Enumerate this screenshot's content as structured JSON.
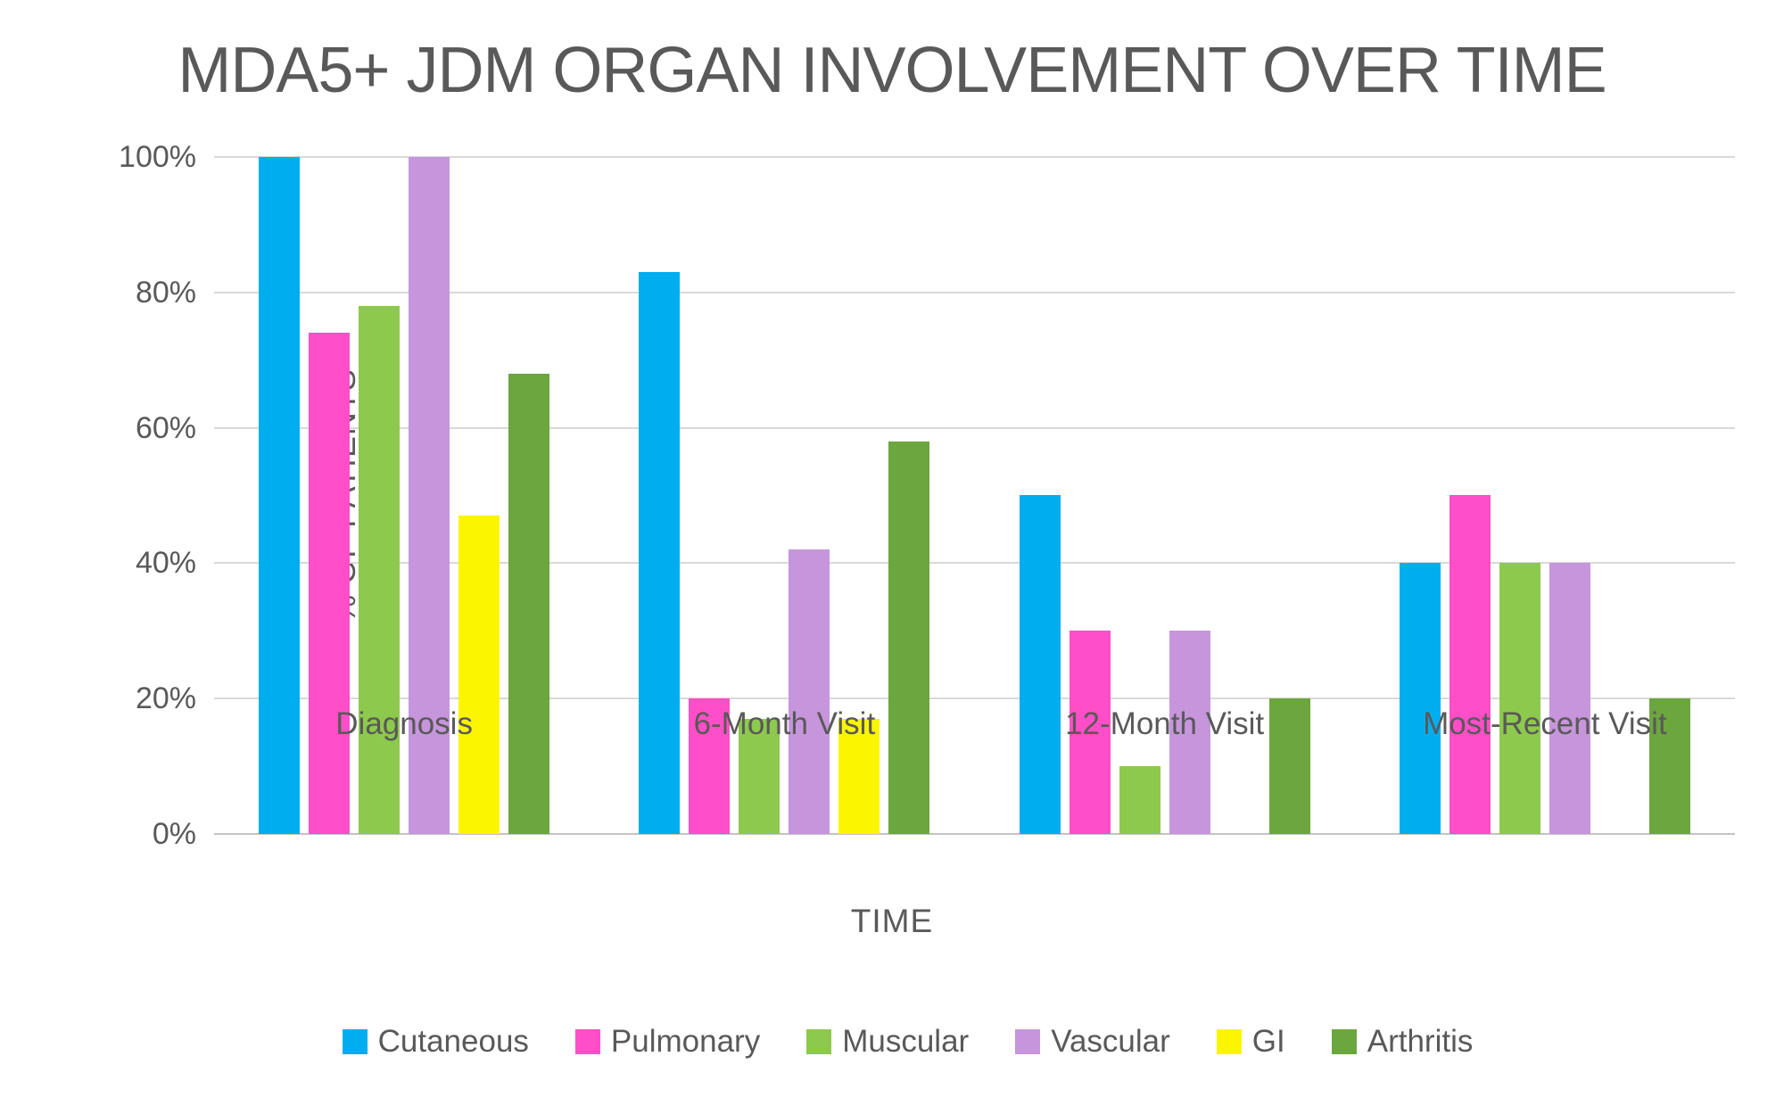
{
  "title": "MDA5+ JDM ORGAN INVOLVEMENT OVER TIME",
  "colors": {
    "title_text": "#595959",
    "axis_text": "#595959",
    "gridline": "#d9d9d9",
    "baseline": "#c3c3c3",
    "background": "#ffffff"
  },
  "chart_data": {
    "type": "bar",
    "title": "MDA5+ JDM ORGAN INVOLVEMENT OVER TIME",
    "categories": [
      "Diagnosis",
      "6-Month Visit",
      "12-Month Visit",
      "Most-Recent Visit"
    ],
    "series": [
      {
        "name": "Cutaneous",
        "color": "#00aeef",
        "values": [
          100,
          83,
          50,
          40
        ]
      },
      {
        "name": "Pulmonary",
        "color": "#ff4ec7",
        "values": [
          74,
          20,
          30,
          50
        ]
      },
      {
        "name": "Muscular",
        "color": "#8dc94d",
        "values": [
          78,
          17,
          10,
          40
        ]
      },
      {
        "name": "Vascular",
        "color": "#c795dc",
        "values": [
          100,
          42,
          30,
          40
        ]
      },
      {
        "name": "GI",
        "color": "#fcf500",
        "values": [
          47,
          17,
          0,
          0
        ]
      },
      {
        "name": "Arthritis",
        "color": "#6ca63f",
        "values": [
          68,
          58,
          20,
          20
        ]
      }
    ],
    "xlabel": "TIME",
    "ylabel": "% OF PATIENTS",
    "ylim": [
      0,
      100
    ],
    "ytick_step": 20,
    "ytick_labels": [
      "0%",
      "20%",
      "40%",
      "60%",
      "80%",
      "100%"
    ],
    "grid": true,
    "legend_position": "bottom"
  }
}
